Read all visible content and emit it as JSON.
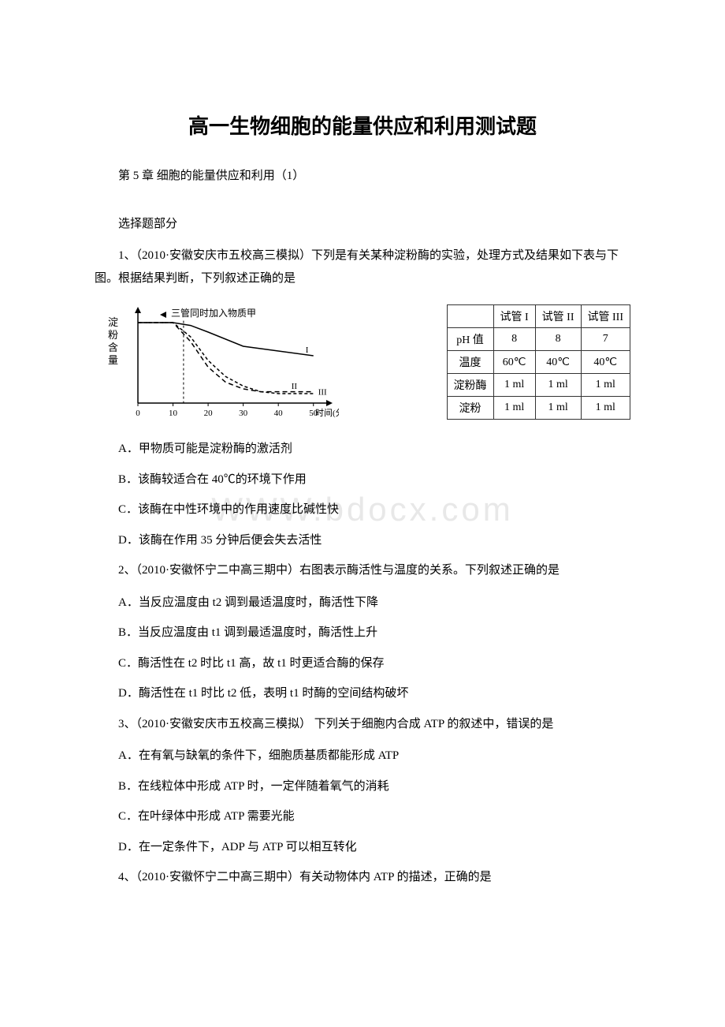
{
  "title": "高一生物细胞的能量供应和利用测试题",
  "subtitle": "第 5 章 细胞的能量供应和利用（1）",
  "section_heading": "选择题部分",
  "q1": {
    "stem": "1、（2010·安徽安庆市五校高三模拟）下列是有关某种淀粉酶的实验，处理方式及结果如下表与下图。根据结果判断，下列叙述正确的是",
    "chart": {
      "type": "line",
      "title": "",
      "y_axis_label": "淀粉含量",
      "x_axis_label": "时间(分)",
      "x_ticks": [
        0,
        10,
        20,
        30,
        40,
        50
      ],
      "x_range": [
        0,
        55
      ],
      "y_range": [
        0,
        100
      ],
      "legend_text": "三管同时加入物质甲",
      "series": [
        {
          "name": "I",
          "dash": "none",
          "color": "#000000",
          "points": [
            [
              0,
              85
            ],
            [
              10,
              85
            ],
            [
              15,
              82
            ],
            [
              20,
              75
            ],
            [
              30,
              60
            ],
            [
              40,
              55
            ],
            [
              50,
              50
            ]
          ]
        },
        {
          "name": "II",
          "dash": "4,3",
          "color": "#000000",
          "points": [
            [
              0,
              85
            ],
            [
              10,
              85
            ],
            [
              15,
              70
            ],
            [
              20,
              45
            ],
            [
              25,
              28
            ],
            [
              30,
              18
            ],
            [
              35,
              12
            ],
            [
              40,
              10
            ],
            [
              50,
              10
            ]
          ]
        },
        {
          "name": "III",
          "dash": "6,4",
          "color": "#000000",
          "points": [
            [
              0,
              85
            ],
            [
              10,
              85
            ],
            [
              15,
              65
            ],
            [
              20,
              38
            ],
            [
              25,
              22
            ],
            [
              30,
              15
            ],
            [
              35,
              12
            ],
            [
              40,
              12
            ],
            [
              50,
              12
            ]
          ]
        }
      ],
      "background_color": "#ffffff",
      "axis_color": "#000000",
      "line_width": 1.5
    },
    "table": {
      "columns": [
        "",
        "试管 I",
        "试管 II",
        "试管 III"
      ],
      "rows": [
        [
          "pH 值",
          "8",
          "8",
          "7"
        ],
        [
          "温度",
          "60℃",
          "40℃",
          "40℃"
        ],
        [
          "淀粉酶",
          "1 ml",
          "1 ml",
          "1 ml"
        ],
        [
          "淀粉",
          "1 ml",
          "1 ml",
          "1 ml"
        ]
      ],
      "border_color": "#333333",
      "cell_fontsize": 14
    },
    "options": {
      "A": "A．甲物质可能是淀粉酶的激活剂",
      "B": "B．该酶较适合在 40℃的环境下作用",
      "C": "C．该酶在中性环境中的作用速度比碱性快",
      "D": "D．该酶在作用 35 分钟后便会失去活性"
    }
  },
  "q2": {
    "stem": "2、（2010·安徽怀宁二中高三期中）右图表示酶活性与温度的关系。下列叙述正确的是",
    "options": {
      "A": "A．当反应温度由 t2 调到最适温度时，酶活性下降",
      "B": "B．当反应温度由 t1 调到最适温度时，酶活性上升",
      "C": "C．酶活性在 t2 时比 t1 高，故 t1 时更适合酶的保存",
      "D": "D．酶活性在 t1 时比 t2 低，表明 t1 时酶的空间结构破坏"
    }
  },
  "q3": {
    "stem": "3、（2010·安徽安庆市五校高三模拟） 下列关于细胞内合成 ATP 的叙述中，错误的是",
    "options": {
      "A": "A．在有氧与缺氧的条件下，细胞质基质都能形成 ATP",
      "B": "B．在线粒体中形成 ATP 时，一定伴随着氧气的消耗",
      "C": "C．在叶绿体中形成 ATP 需要光能",
      "D": "D．在一定条件下，ADP 与 ATP 可以相互转化"
    }
  },
  "q4": {
    "stem": "4、（2010·安徽怀宁二中高三期中）有关动物体内 ATP 的描述，正确的是"
  },
  "watermark": "WWW.bdocx.com"
}
